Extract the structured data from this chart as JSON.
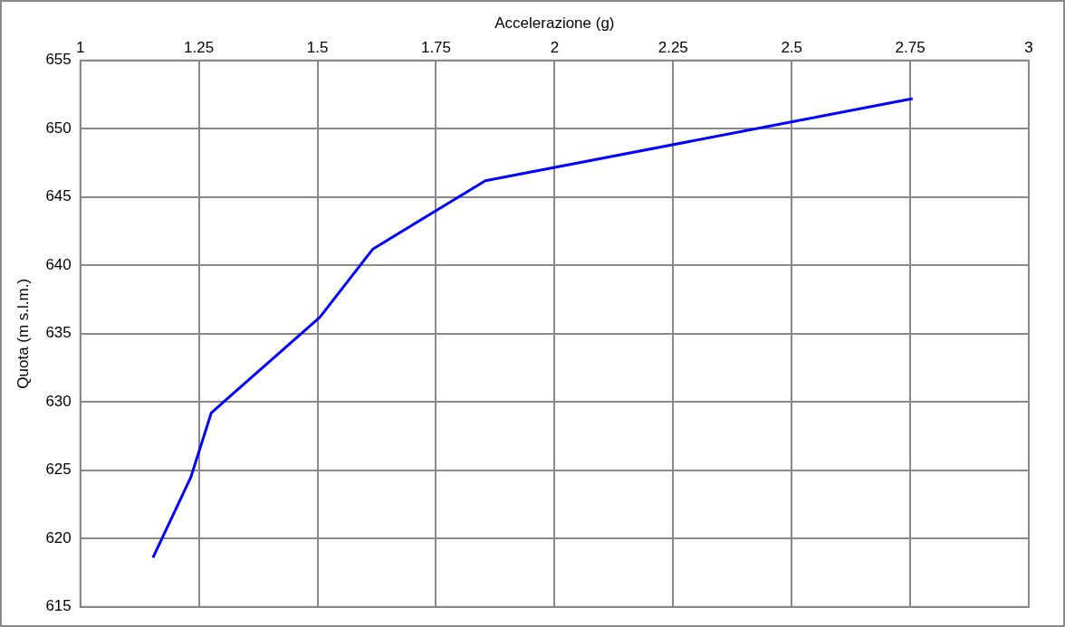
{
  "chart_data": {
    "type": "line",
    "xlabel": "Accelerazione (g)",
    "ylabel": "Quota (m s.l.m.)",
    "x": [
      1.153,
      1.233,
      1.276,
      1.505,
      1.617,
      1.854,
      2.755
    ],
    "series": [
      {
        "color": "#0000ff",
        "values": [
          618.6,
          624.5,
          629.2,
          636.2,
          641.2,
          646.2,
          652.2
        ]
      }
    ],
    "xlim": [
      1,
      3
    ],
    "xticks": [
      1,
      1.25,
      1.5,
      1.75,
      2,
      2.25,
      2.5,
      2.75,
      3
    ],
    "ylim": [
      615,
      655
    ],
    "yticks": [
      615,
      620,
      625,
      630,
      635,
      640,
      645,
      650,
      655
    ],
    "grid": true,
    "legend": false,
    "marker": "none",
    "line_style": "solid"
  }
}
